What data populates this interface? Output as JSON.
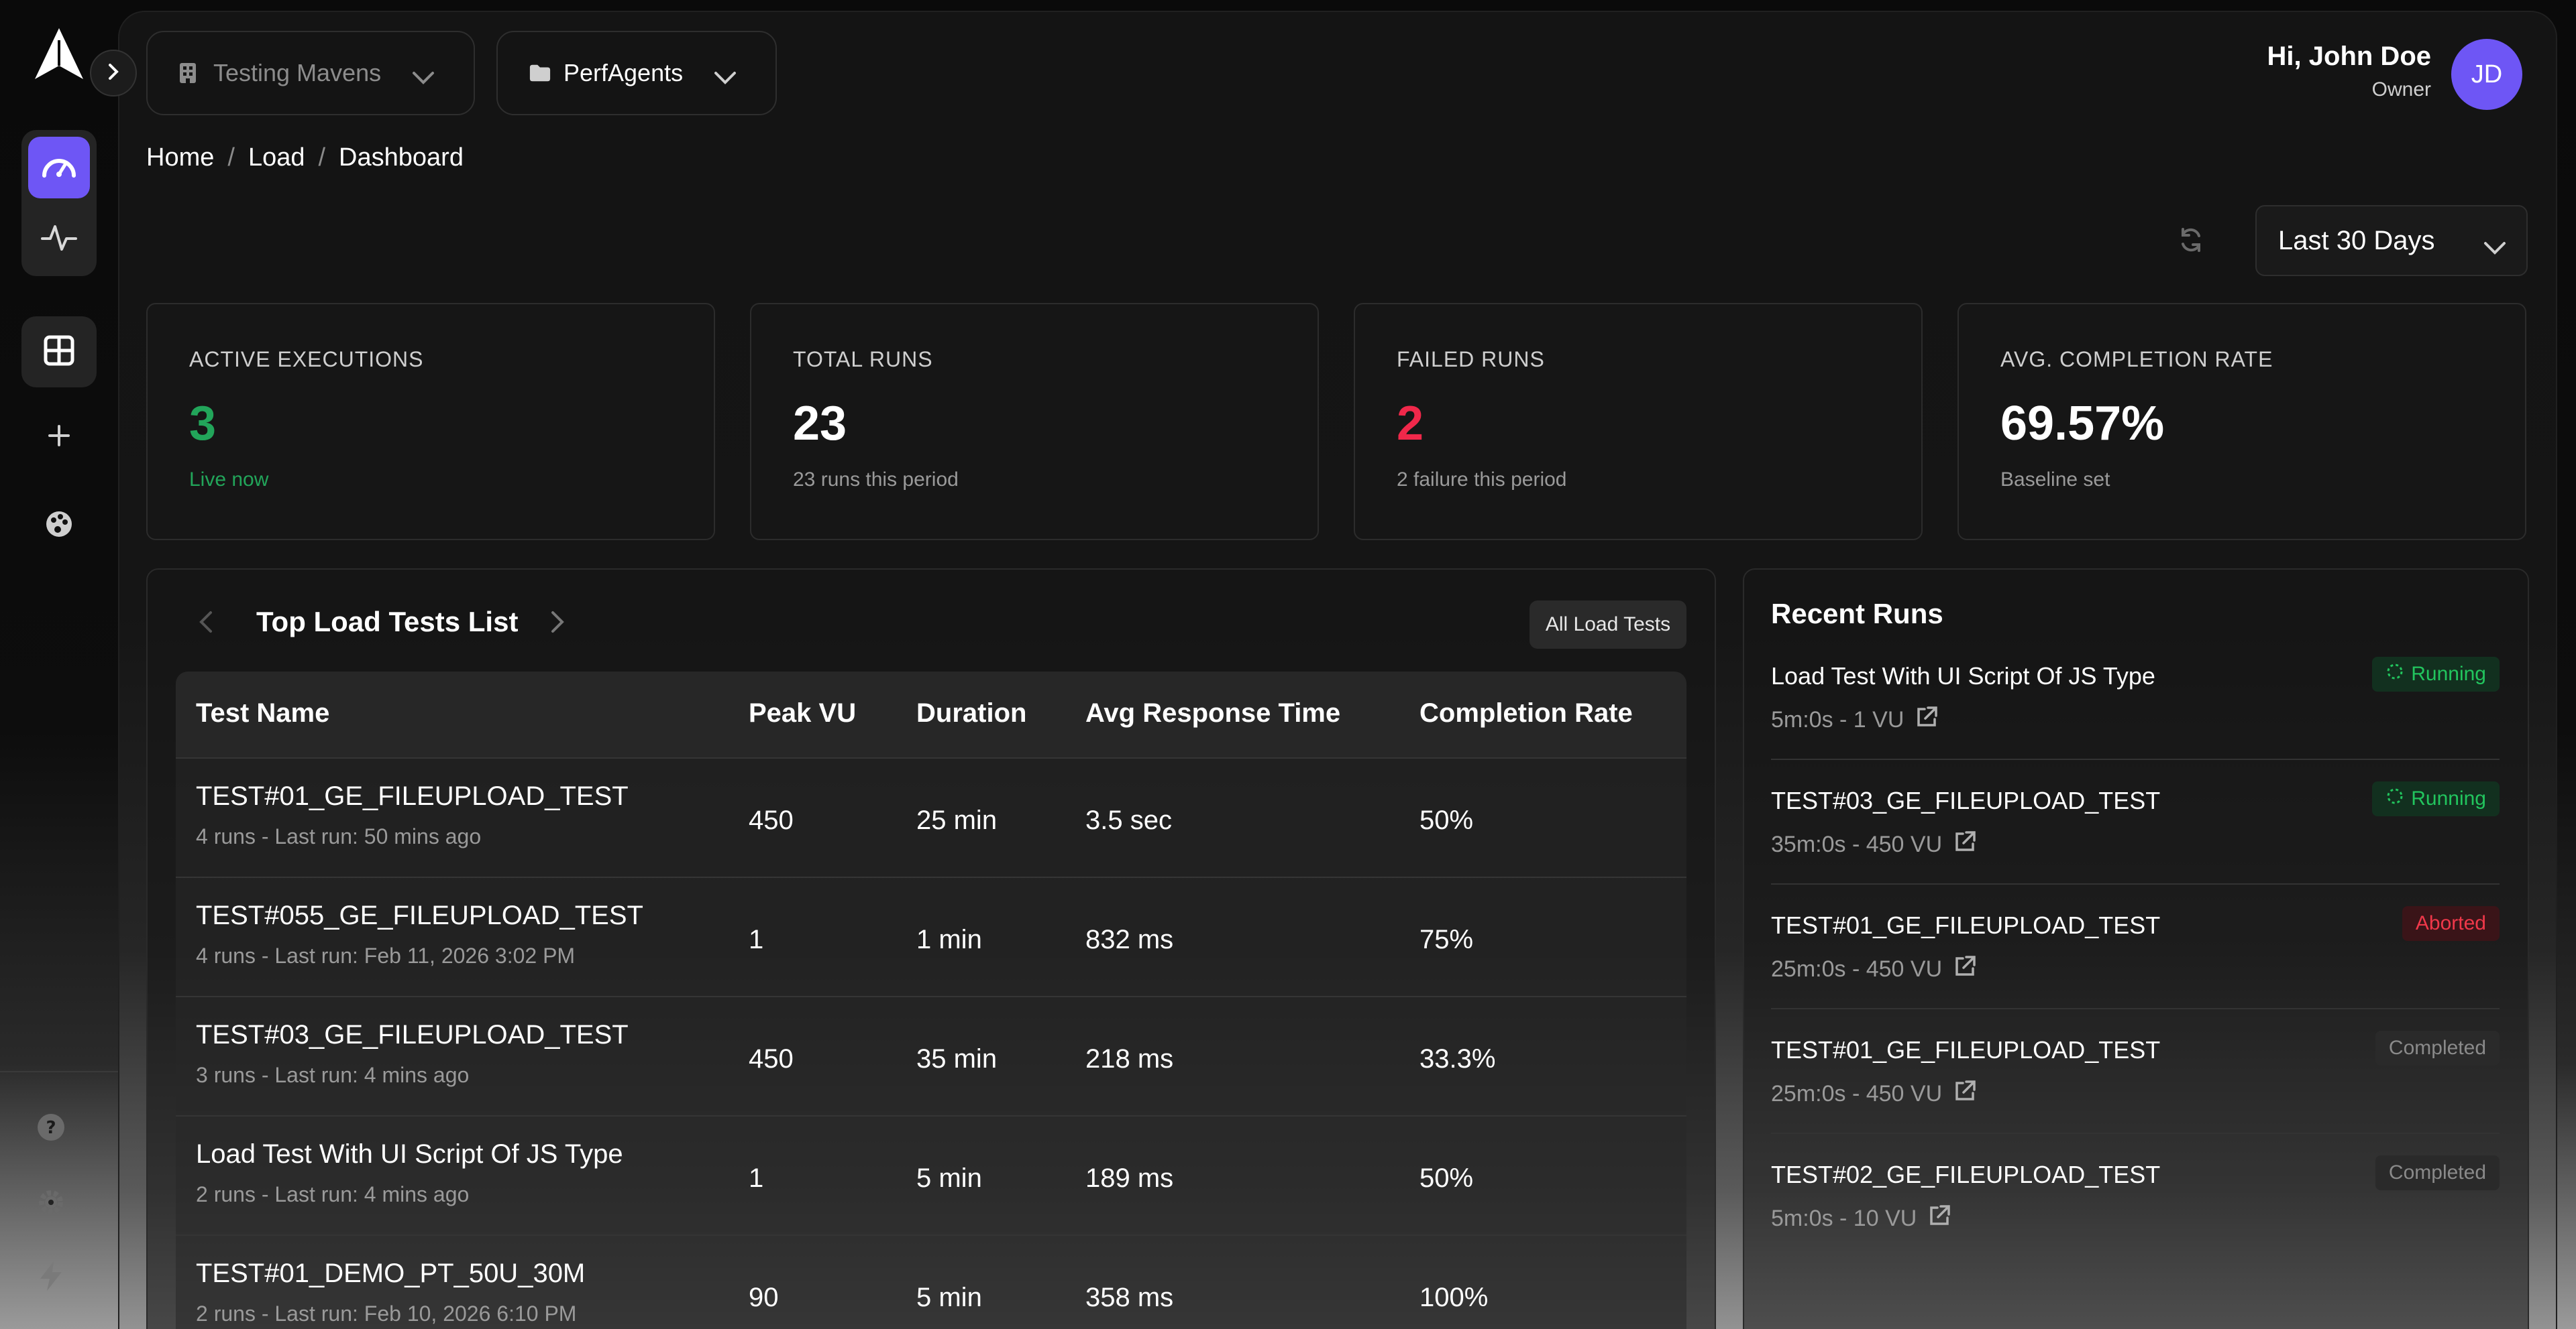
{
  "header": {
    "org": "Testing Mavens",
    "project": "PerfAgents",
    "greeting": "Hi, John Doe",
    "role": "Owner",
    "avatar_initials": "JD"
  },
  "breadcrumb": [
    "Home",
    "Load",
    "Dashboard"
  ],
  "date_range": "Last 30 Days",
  "stats": [
    {
      "label": "ACTIVE EXECUTIONS",
      "value": "3",
      "sub": "Live now",
      "color": "#22a55a",
      "sub_color": "#22a55a"
    },
    {
      "label": "TOTAL RUNS",
      "value": "23",
      "sub": "23 runs this period",
      "color": "#ffffff",
      "sub_color": "#9a9a9a"
    },
    {
      "label": "FAILED RUNS",
      "value": "2",
      "sub": "2 failure this period",
      "color": "#f0284a",
      "sub_color": "#9a9a9a"
    },
    {
      "label": "AVG. COMPLETION RATE",
      "value": "69.57%",
      "sub": "Baseline set",
      "color": "#ffffff",
      "sub_color": "#9a9a9a"
    }
  ],
  "load_tests": {
    "title": "Top Load Tests List",
    "all_button": "All Load Tests",
    "columns": [
      "Test Name",
      "Peak VU",
      "Duration",
      "Avg Response Time",
      "Completion Rate"
    ],
    "rows": [
      {
        "name": "TEST#01_GE_FILEUPLOAD_TEST",
        "meta": "4 runs - Last run: 50 mins ago",
        "peak_vu": "450",
        "duration": "25 min",
        "avg_rt": "3.5 sec",
        "completion": "50%"
      },
      {
        "name": "TEST#055_GE_FILEUPLOAD_TEST",
        "meta": "4 runs - Last run: Feb 11, 2026 3:02 PM",
        "peak_vu": "1",
        "duration": "1 min",
        "avg_rt": "832 ms",
        "completion": "75%"
      },
      {
        "name": "TEST#03_GE_FILEUPLOAD_TEST",
        "meta": "3 runs - Last run: 4 mins ago",
        "peak_vu": "450",
        "duration": "35 min",
        "avg_rt": "218 ms",
        "completion": "33.3%"
      },
      {
        "name": "Load Test With UI Script Of JS Type",
        "meta": "2 runs - Last run: 4 mins ago",
        "peak_vu": "1",
        "duration": "5 min",
        "avg_rt": "189 ms",
        "completion": "50%"
      },
      {
        "name": "TEST#01_DEMO_PT_50U_30M",
        "meta": "2 runs - Last run: Feb 10, 2026 6:10 PM",
        "peak_vu": "90",
        "duration": "5 min",
        "avg_rt": "358 ms",
        "completion": "100%"
      }
    ]
  },
  "recent_runs": {
    "title": "Recent Runs",
    "items": [
      {
        "name": "Load Test With UI Script Of JS Type",
        "detail": "5m:0s - 1 VU",
        "status": "Running",
        "kind": "run"
      },
      {
        "name": "TEST#03_GE_FILEUPLOAD_TEST",
        "detail": "35m:0s - 450 VU",
        "status": "Running",
        "kind": "run"
      },
      {
        "name": "TEST#01_GE_FILEUPLOAD_TEST",
        "detail": "25m:0s - 450 VU",
        "status": "Aborted",
        "kind": "ab"
      },
      {
        "name": "TEST#01_GE_FILEUPLOAD_TEST",
        "detail": "25m:0s - 450 VU",
        "status": "Completed",
        "kind": "done"
      },
      {
        "name": "TEST#02_GE_FILEUPLOAD_TEST",
        "detail": "5m:0s - 10 VU",
        "status": "Completed",
        "kind": "done"
      }
    ]
  },
  "icons": {
    "logo": "arrow-logo-icon",
    "expand": "chevron-right-icon",
    "dashboard": "speedometer-icon",
    "activity": "activity-icon",
    "grid": "grid-icon",
    "add": "plus-icon",
    "palette": "palette-icon",
    "help": "help-icon",
    "settings": "gear-icon",
    "bolt": "bolt-icon"
  }
}
